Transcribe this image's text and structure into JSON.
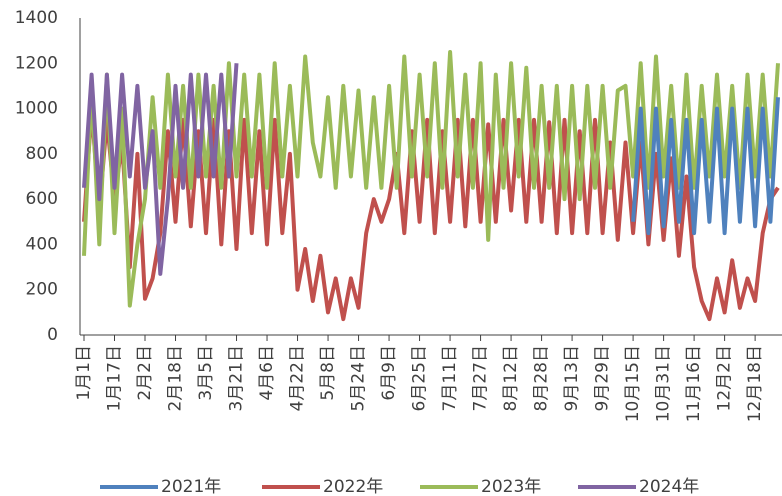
{
  "chart_data": {
    "type": "line",
    "categories": [
      "1月1日",
      null,
      null,
      null,
      "1月17日",
      null,
      null,
      null,
      "2月2日",
      null,
      null,
      null,
      "2月18日",
      null,
      null,
      null,
      "3月5日",
      null,
      null,
      null,
      "3月21日",
      null,
      null,
      null,
      "4月6日",
      null,
      null,
      null,
      "4月22日",
      null,
      null,
      null,
      "5月8日",
      null,
      null,
      null,
      "5月24日",
      null,
      null,
      null,
      "6月9日",
      null,
      null,
      null,
      "6月25日",
      null,
      null,
      null,
      "7月11日",
      null,
      null,
      null,
      "7月27日",
      null,
      null,
      null,
      "8月12日",
      null,
      null,
      null,
      "8月28日",
      null,
      null,
      null,
      "9月13日",
      null,
      null,
      null,
      "9月29日",
      null,
      null,
      null,
      "10月15日",
      null,
      null,
      null,
      "10月31日",
      null,
      null,
      null,
      "11月16日",
      null,
      null,
      null,
      "12月2日",
      null,
      null,
      null,
      "12月18日",
      null,
      null,
      null
    ],
    "series": [
      {
        "name": "2021年",
        "color": "#4f81bd",
        "values": [
          null,
          null,
          null,
          null,
          null,
          null,
          null,
          null,
          null,
          null,
          null,
          null,
          null,
          null,
          null,
          null,
          null,
          null,
          null,
          null,
          null,
          null,
          null,
          null,
          null,
          null,
          null,
          null,
          null,
          null,
          null,
          null,
          null,
          null,
          null,
          null,
          null,
          null,
          null,
          null,
          null,
          null,
          null,
          null,
          null,
          null,
          null,
          null,
          null,
          null,
          null,
          null,
          null,
          null,
          null,
          null,
          null,
          null,
          null,
          null,
          null,
          null,
          null,
          null,
          null,
          null,
          null,
          null,
          null,
          null,
          null,
          null,
          500,
          1000,
          450,
          1000,
          480,
          950,
          500,
          950,
          450,
          950,
          500,
          1000,
          450,
          1000,
          500,
          1000,
          480,
          1000,
          500,
          1050
        ]
      },
      {
        "name": "2022年",
        "color": "#c0504d",
        "values": [
          500,
          1000,
          550,
          950,
          600,
          850,
          300,
          800,
          160,
          250,
          450,
          900,
          500,
          950,
          480,
          900,
          450,
          950,
          400,
          900,
          380,
          950,
          450,
          900,
          400,
          950,
          450,
          800,
          200,
          380,
          150,
          350,
          100,
          250,
          70,
          250,
          120,
          450,
          600,
          500,
          600,
          800,
          450,
          900,
          500,
          950,
          450,
          900,
          500,
          950,
          480,
          950,
          500,
          930,
          500,
          950,
          550,
          950,
          500,
          950,
          500,
          940,
          450,
          950,
          450,
          900,
          450,
          950,
          450,
          850,
          420,
          850,
          450,
          850,
          400,
          800,
          420,
          780,
          350,
          700,
          300,
          150,
          70,
          250,
          100,
          330,
          120,
          250,
          150,
          450,
          600,
          650
        ]
      },
      {
        "name": "2023年",
        "color": "#9bbb59",
        "values": [
          350,
          1100,
          400,
          1150,
          450,
          1000,
          130,
          400,
          600,
          1050,
          650,
          1150,
          700,
          1100,
          650,
          1150,
          700,
          1100,
          650,
          1200,
          700,
          1150,
          700,
          1150,
          650,
          1200,
          700,
          1100,
          700,
          1230,
          850,
          700,
          1050,
          650,
          1100,
          700,
          1080,
          650,
          1050,
          650,
          1100,
          650,
          1230,
          700,
          1150,
          700,
          1200,
          650,
          1250,
          700,
          1150,
          650,
          1200,
          420,
          1150,
          650,
          1200,
          700,
          1180,
          650,
          1100,
          650,
          1100,
          600,
          1100,
          600,
          1100,
          650,
          1100,
          650,
          1080,
          1100,
          700,
          1200,
          650,
          1230,
          700,
          1100,
          650,
          1150,
          650,
          1100,
          700,
          1150,
          700,
          1100,
          650,
          1150,
          700,
          1150,
          700,
          1200
        ]
      },
      {
        "name": "2024年",
        "color": "#8064a2",
        "values": [
          650,
          1150,
          600,
          1150,
          650,
          1150,
          700,
          1100,
          650,
          900,
          270,
          600,
          1100,
          650,
          1150,
          700,
          1150,
          700,
          1150,
          700,
          1200,
          null,
          null,
          null,
          null,
          null,
          null,
          null,
          null,
          null,
          null,
          null,
          null,
          null,
          null,
          null,
          null,
          null,
          null,
          null,
          null,
          null,
          null,
          null,
          null,
          null,
          null,
          null,
          null,
          null,
          null,
          null,
          null,
          null,
          null,
          null,
          null,
          null,
          null,
          null,
          null,
          null,
          null,
          null,
          null,
          null,
          null,
          null,
          null,
          null,
          null,
          null,
          null,
          null,
          null,
          null,
          null,
          null,
          null,
          null,
          null,
          null,
          null,
          null,
          null,
          null,
          null,
          null,
          null,
          null,
          null,
          null
        ]
      }
    ],
    "ylim": [
      0,
      1400
    ],
    "yticks": [
      0,
      200,
      400,
      600,
      800,
      1000,
      1200,
      1400
    ],
    "grid": false,
    "legend": "bottom"
  }
}
